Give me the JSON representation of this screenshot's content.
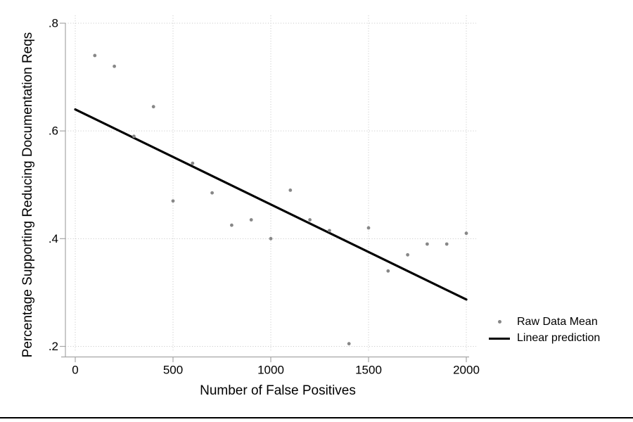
{
  "chart_data": {
    "type": "scatter",
    "title": "",
    "xlabel": "Number of False Positives",
    "ylabel": "Percentage Supporting Reducing Documentation Reqs",
    "xlim": [
      0,
      2000
    ],
    "ylim": [
      0.2,
      0.8
    ],
    "xticks": [
      0,
      500,
      1000,
      1500,
      2000
    ],
    "xtick_labels": [
      "0",
      "500",
      "1000",
      "1500",
      "2000"
    ],
    "yticks": [
      0.2,
      0.4,
      0.6,
      0.8
    ],
    "ytick_labels": [
      ".2",
      ".4",
      ".6",
      ".8"
    ],
    "grid": true,
    "legend_position": "right-outside",
    "series": [
      {
        "name": "Raw Data Mean",
        "type": "scatter",
        "color": "#878787",
        "x": [
          100,
          200,
          300,
          400,
          500,
          600,
          700,
          800,
          900,
          1000,
          1100,
          1200,
          1300,
          1400,
          1500,
          1600,
          1700,
          1800,
          1900,
          2000
        ],
        "y": [
          0.74,
          0.72,
          0.59,
          0.645,
          0.47,
          0.54,
          0.485,
          0.425,
          0.435,
          0.4,
          0.49,
          0.435,
          0.415,
          0.205,
          0.42,
          0.34,
          0.37,
          0.39,
          0.39,
          0.41
        ]
      },
      {
        "name": "Linear prediction",
        "type": "line",
        "color": "#000000",
        "x": [
          0,
          2000
        ],
        "y": [
          0.64,
          0.287
        ]
      }
    ]
  },
  "colors": {
    "background": "#ffffff",
    "gridline": "#c4c4c4",
    "axis": "#a6a6a6",
    "tick_label": "#000000",
    "bottom_rule": "#000000"
  }
}
